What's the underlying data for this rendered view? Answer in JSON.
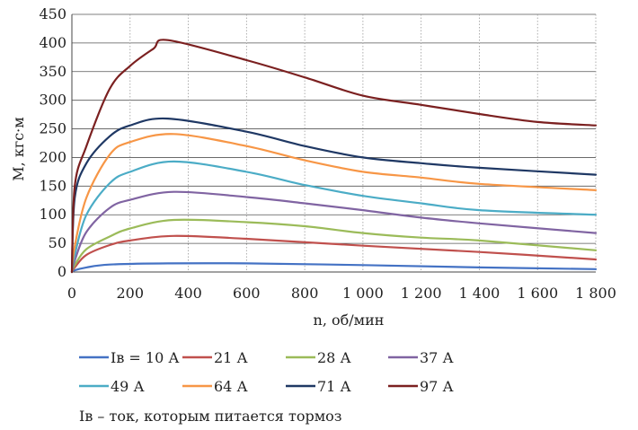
{
  "chart_data": {
    "type": "line",
    "title": "",
    "xlabel": "n, об/мин",
    "ylabel": "M, кгс·м",
    "xlim": [
      0,
      1800
    ],
    "ylim": [
      0,
      450
    ],
    "xticks": [
      0,
      200,
      400,
      600,
      800,
      1000,
      1200,
      1400,
      1600,
      1800
    ],
    "xtick_labels": [
      "0",
      "200",
      "400",
      "600",
      "800",
      "1 000",
      "1 200",
      "1 400",
      "1 600",
      "1 800"
    ],
    "yticks": [
      0,
      50,
      100,
      150,
      200,
      250,
      300,
      350,
      400,
      450
    ],
    "ytick_labels": [
      "0",
      "50",
      "100",
      "150",
      "200",
      "250",
      "300",
      "350",
      "400",
      "450"
    ],
    "grid": true,
    "legend_position": "bottom",
    "note": "Iв – ток, которым питается тормоз",
    "series": [
      {
        "name": "Iв = 10 А",
        "color": "#4472C4",
        "x": [
          0,
          10,
          50,
          130,
          330,
          600,
          1000,
          1400,
          1800
        ],
        "y": [
          0,
          3,
          8,
          13,
          15,
          15,
          12,
          8,
          5
        ]
      },
      {
        "name": "21 А",
        "color": "#C0504D",
        "x": [
          0,
          10,
          50,
          130,
          200,
          350,
          600,
          1000,
          1400,
          1800
        ],
        "y": [
          0,
          8,
          30,
          47,
          55,
          63,
          58,
          46,
          35,
          22
        ]
      },
      {
        "name": "28 А",
        "color": "#9BBB59",
        "x": [
          0,
          10,
          50,
          130,
          200,
          350,
          600,
          800,
          1000,
          1200,
          1400,
          1800
        ],
        "y": [
          0,
          12,
          40,
          62,
          76,
          91,
          87,
          80,
          68,
          60,
          55,
          38
        ]
      },
      {
        "name": "37 А",
        "color": "#8064A2",
        "x": [
          0,
          10,
          50,
          130,
          200,
          350,
          600,
          800,
          1000,
          1200,
          1400,
          1800
        ],
        "y": [
          0,
          20,
          70,
          112,
          126,
          140,
          131,
          120,
          108,
          95,
          85,
          68
        ]
      },
      {
        "name": "49 А",
        "color": "#4BACC6",
        "x": [
          0,
          10,
          50,
          130,
          200,
          350,
          600,
          800,
          1000,
          1200,
          1400,
          1800
        ],
        "y": [
          0,
          30,
          100,
          155,
          175,
          193,
          175,
          152,
          133,
          120,
          108,
          100
        ]
      },
      {
        "name": "64 А",
        "color": "#F79646",
        "x": [
          0,
          10,
          50,
          130,
          200,
          350,
          600,
          800,
          1000,
          1200,
          1400,
          1800
        ],
        "y": [
          0,
          45,
          130,
          205,
          227,
          241,
          220,
          195,
          175,
          165,
          154,
          143
        ]
      },
      {
        "name": "71 А",
        "color": "#1F3864",
        "x": [
          0,
          10,
          50,
          130,
          200,
          330,
          600,
          800,
          1000,
          1200,
          1400,
          1800
        ],
        "y": [
          0,
          130,
          190,
          237,
          256,
          268,
          245,
          220,
          200,
          190,
          182,
          170
        ]
      },
      {
        "name": "97 А",
        "color": "#7B2020",
        "x": [
          0,
          10,
          50,
          130,
          200,
          280,
          330,
          600,
          800,
          1000,
          1200,
          1400,
          1600,
          1800
        ],
        "y": [
          0,
          150,
          220,
          320,
          360,
          390,
          405,
          370,
          340,
          308,
          292,
          276,
          262,
          256
        ]
      }
    ]
  }
}
